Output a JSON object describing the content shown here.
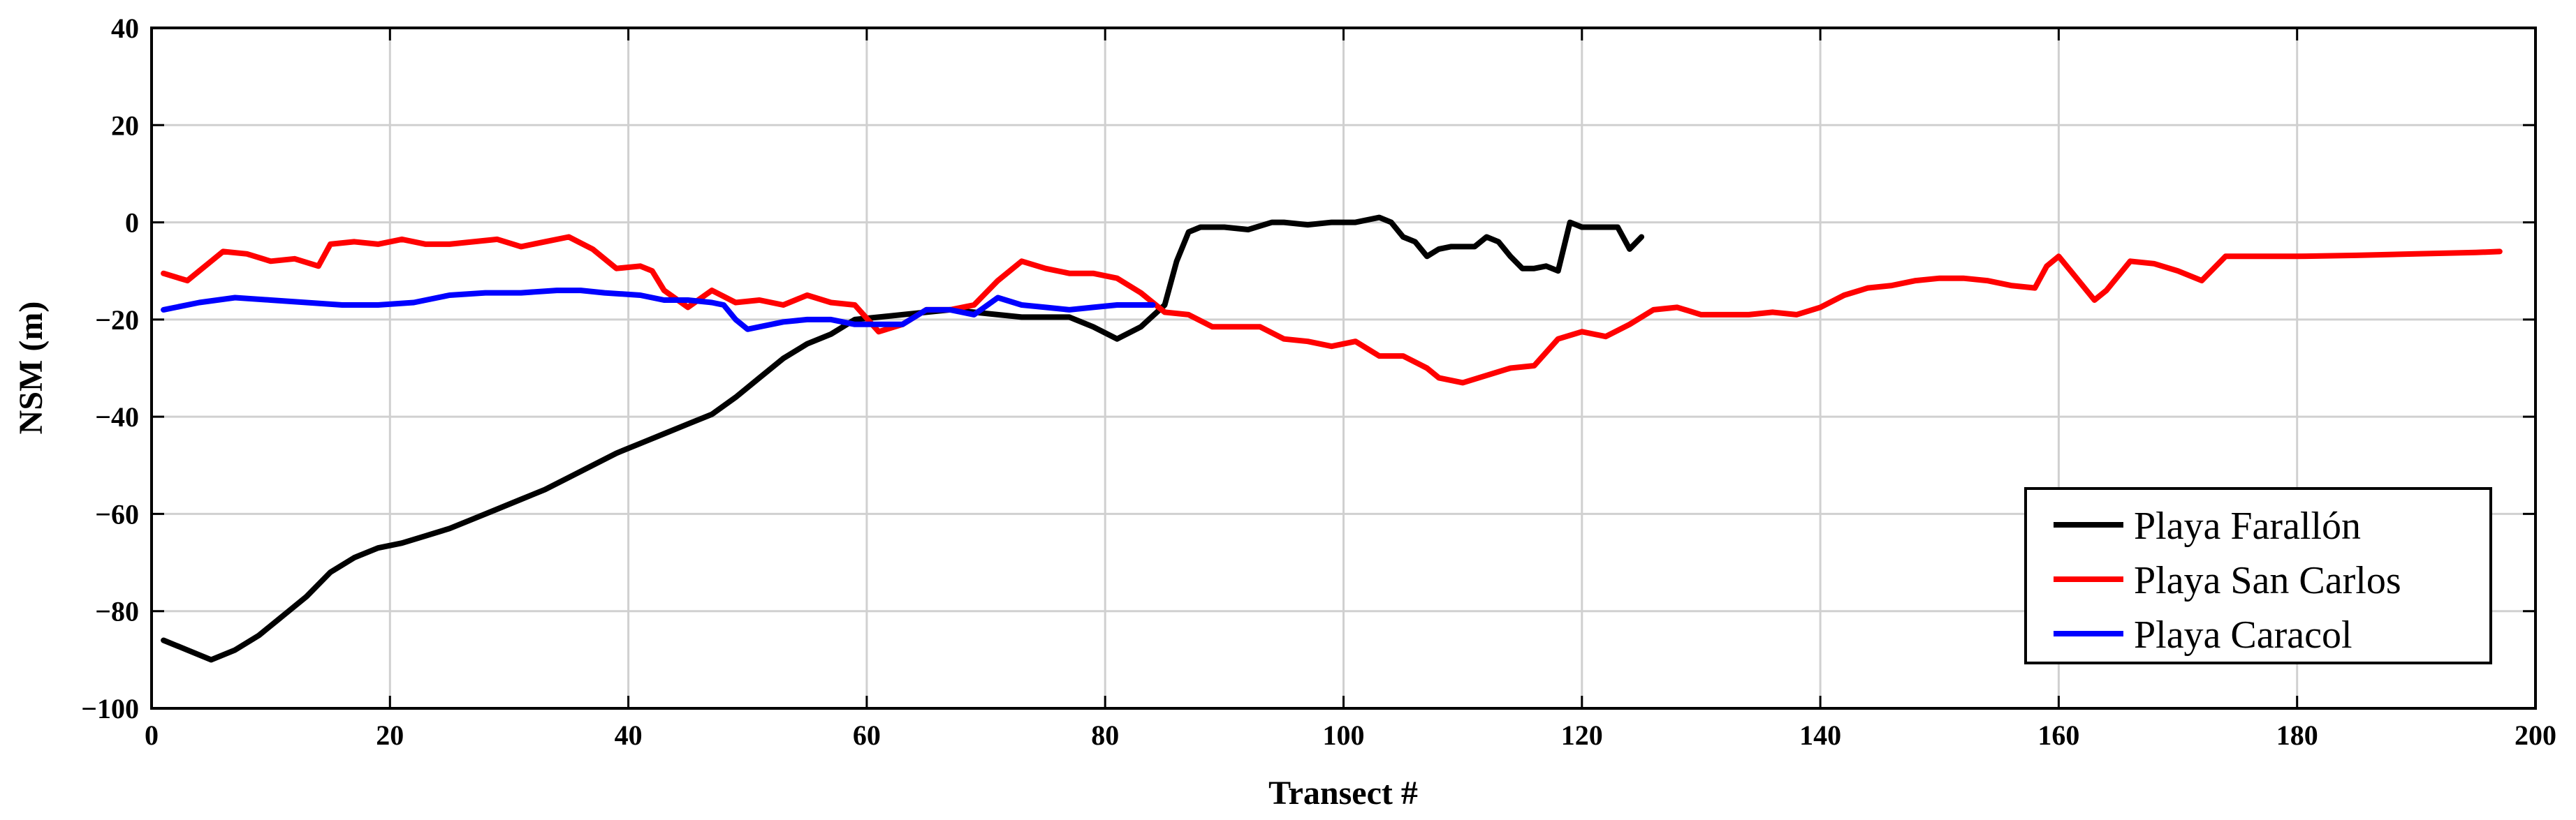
{
  "chart_data": {
    "type": "line",
    "title": "",
    "xlabel": "Transect #",
    "ylabel": "NSM (m)",
    "xlim": [
      0,
      200
    ],
    "ylim": [
      -100,
      40
    ],
    "xticks": [
      0,
      20,
      40,
      60,
      80,
      100,
      120,
      140,
      160,
      180,
      200
    ],
    "yticks": [
      -100,
      -80,
      -60,
      -40,
      -20,
      0,
      20,
      40
    ],
    "grid": true,
    "legend_position": "bottom-right",
    "series": [
      {
        "name": "Playa Farallón",
        "color": "#000000",
        "x": [
          1,
          3,
          5,
          7,
          9,
          11,
          13,
          15,
          17,
          19,
          21,
          23,
          25,
          27,
          29,
          31,
          33,
          35,
          37,
          39,
          41,
          43,
          45,
          47,
          49,
          51,
          53,
          55,
          57,
          59,
          61,
          63,
          65,
          67,
          69,
          71,
          73,
          75,
          77,
          79,
          81,
          83,
          85,
          86,
          87,
          88,
          90,
          92,
          94,
          95,
          97,
          99,
          101,
          102,
          103,
          104,
          105,
          106,
          107,
          108,
          109,
          110,
          111,
          112,
          113,
          114,
          115,
          116,
          117,
          118,
          119,
          120,
          121,
          123,
          124,
          125
        ],
        "y": [
          -86,
          -88,
          -90,
          -88,
          -85,
          -81,
          -77,
          -72,
          -69,
          -67,
          -66,
          -64.5,
          -63,
          -61,
          -59,
          -57,
          -55,
          -52.5,
          -50,
          -47.5,
          -45.5,
          -43.5,
          -41.5,
          -39.5,
          -36,
          -32,
          -28,
          -25,
          -23,
          -20,
          -19.5,
          -19,
          -18.5,
          -18,
          -18.5,
          -19,
          -19.5,
          -19.5,
          -19.5,
          -21.5,
          -24,
          -21.5,
          -17,
          -8,
          -2,
          -1,
          -1,
          -1.5,
          0,
          0,
          -0.5,
          0,
          0,
          0.5,
          1,
          0,
          -3,
          -4,
          -7,
          -5.5,
          -5,
          -5,
          -5,
          -3,
          -4,
          -7,
          -9.5,
          -9.5,
          -9,
          -10,
          0,
          -1,
          -1,
          -1,
          -5.5,
          -3
        ]
      },
      {
        "name": "Playa San Carlos",
        "color": "#ff0000",
        "x": [
          1,
          3,
          5,
          6,
          8,
          10,
          12,
          14,
          15,
          17,
          19,
          21,
          23,
          25,
          27,
          29,
          31,
          33,
          35,
          37,
          39,
          41,
          42,
          43,
          45,
          47,
          49,
          51,
          53,
          55,
          57,
          59,
          61,
          63,
          65,
          67,
          69,
          71,
          73,
          75,
          77,
          79,
          81,
          83,
          85,
          87,
          89,
          91,
          93,
          95,
          97,
          99,
          101,
          103,
          105,
          107,
          108,
          110,
          112,
          114,
          116,
          118,
          120,
          122,
          124,
          126,
          128,
          130,
          132,
          134,
          136,
          138,
          140,
          142,
          144,
          146,
          148,
          150,
          152,
          154,
          156,
          158,
          159,
          160,
          161,
          163,
          164,
          166,
          168,
          170,
          172,
          174,
          176,
          180,
          185,
          190,
          195,
          197
        ],
        "y": [
          -10.5,
          -12,
          -8,
          -6,
          -6.5,
          -8,
          -7.5,
          -9,
          -4.5,
          -4,
          -4.5,
          -3.5,
          -4.5,
          -4.5,
          -4,
          -3.5,
          -5,
          -4,
          -3,
          -5.5,
          -9.5,
          -9,
          -10,
          -14,
          -17.5,
          -14,
          -16.5,
          -16,
          -17,
          -15,
          -16.5,
          -17,
          -22.5,
          -21,
          -18,
          -18,
          -17,
          -12,
          -8,
          -9.5,
          -10.5,
          -10.5,
          -11.5,
          -14.5,
          -18.5,
          -19,
          -21.5,
          -21.5,
          -21.5,
          -24,
          -24.5,
          -25.5,
          -24.5,
          -27.5,
          -27.5,
          -30,
          -32,
          -33,
          -31.5,
          -30,
          -29.5,
          -24,
          -22.5,
          -23.5,
          -21,
          -18,
          -17.5,
          -19,
          -19,
          -19,
          -18.5,
          -19,
          -17.5,
          -15,
          -13.5,
          -13,
          -12,
          -11.5,
          -11.5,
          -12,
          -13,
          -13.5,
          -9,
          -7,
          -10,
          -16,
          -14,
          -8,
          -8.5,
          -10,
          -12,
          -7,
          -7,
          -7,
          -6.8,
          -6.5,
          -6.2,
          -6
        ]
      },
      {
        "name": "Playa Caracol",
        "color": "#0000ff",
        "x": [
          1,
          4,
          7,
          10,
          13,
          16,
          19,
          22,
          25,
          28,
          31,
          34,
          36,
          38,
          41,
          43,
          45,
          47,
          48,
          49,
          50,
          51,
          53,
          55,
          57,
          59,
          61,
          63,
          65,
          67,
          69,
          71,
          73,
          75,
          77,
          79,
          81,
          83,
          84
        ],
        "y": [
          -18,
          -16.5,
          -15.5,
          -16,
          -16.5,
          -17,
          -17,
          -16.5,
          -15,
          -14.5,
          -14.5,
          -14,
          -14,
          -14.5,
          -15,
          -16,
          -16,
          -16.5,
          -17,
          -20,
          -22,
          -21.5,
          -20.5,
          -20,
          -20,
          -21,
          -21,
          -21,
          -18,
          -18,
          -19,
          -15.5,
          -17,
          -17.5,
          -18,
          -17.5,
          -17,
          -17,
          -17
        ]
      }
    ]
  }
}
